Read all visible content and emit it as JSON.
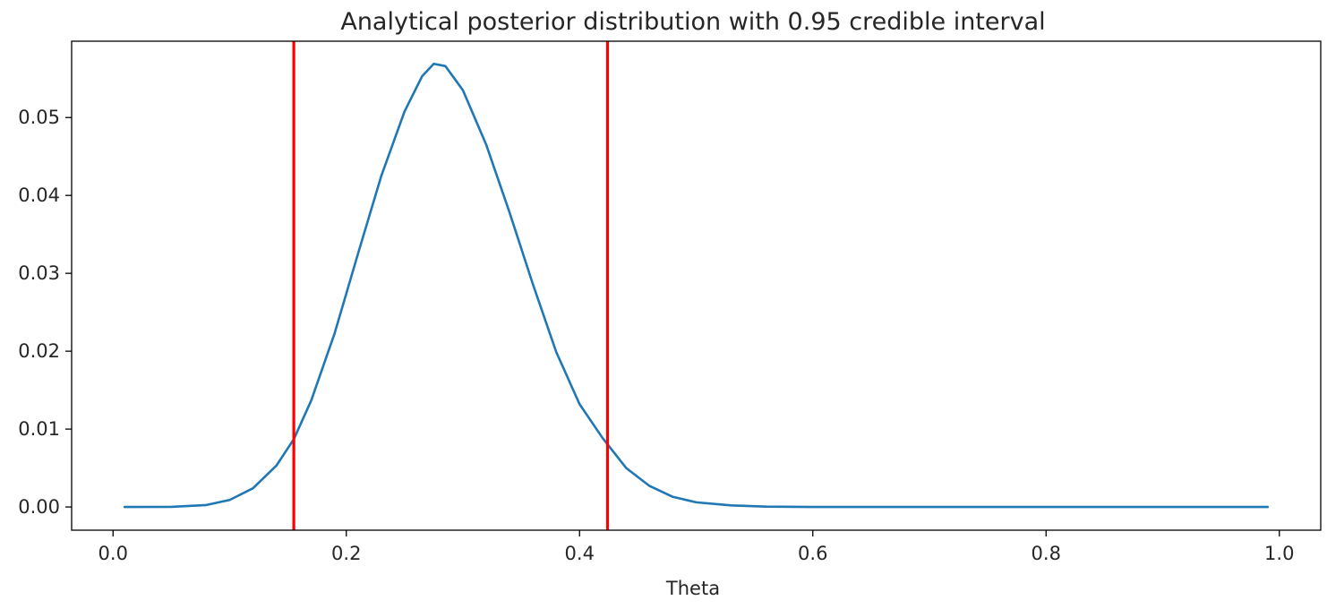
{
  "chart_data": {
    "type": "line",
    "title": "Analytical posterior distribution with 0.95 credible interval",
    "xlabel": "Theta",
    "ylabel": "",
    "xlim": [
      -0.0355,
      1.0355
    ],
    "ylim": [
      -0.00298,
      0.0598
    ],
    "xticks": [
      0.0,
      0.2,
      0.4,
      0.6,
      0.8,
      1.0
    ],
    "xtick_labels": [
      "0.0",
      "0.2",
      "0.4",
      "0.6",
      "0.8",
      "1.0"
    ],
    "yticks": [
      0.0,
      0.01,
      0.02,
      0.03,
      0.04,
      0.05
    ],
    "ytick_labels": [
      "0.00",
      "0.01",
      "0.02",
      "0.03",
      "0.04",
      "0.05"
    ],
    "grid": false,
    "series": [
      {
        "color": "#1f77b4",
        "x": [
          0.01,
          0.05,
          0.08,
          0.1,
          0.12,
          0.14,
          0.155,
          0.17,
          0.19,
          0.21,
          0.23,
          0.25,
          0.265,
          0.275,
          0.285,
          0.3,
          0.32,
          0.34,
          0.36,
          0.38,
          0.4,
          0.42,
          0.44,
          0.46,
          0.48,
          0.5,
          0.53,
          0.56,
          0.6,
          0.7,
          0.8,
          0.9,
          0.99
        ],
        "y": [
          0.0,
          2e-05,
          0.00025,
          0.0009,
          0.0024,
          0.0053,
          0.0087,
          0.0137,
          0.0223,
          0.0325,
          0.0425,
          0.0508,
          0.0553,
          0.0569,
          0.0566,
          0.0535,
          0.0465,
          0.0378,
          0.0286,
          0.0199,
          0.0132,
          0.0088,
          0.005,
          0.0027,
          0.0013,
          0.0006,
          0.0002,
          5e-05,
          0.0,
          0.0,
          0.0,
          0.0,
          0.0
        ]
      }
    ],
    "vertical_lines": [
      {
        "x": 0.155,
        "color": "#ff0000"
      },
      {
        "x": 0.424,
        "color": "#ff0000"
      }
    ]
  }
}
